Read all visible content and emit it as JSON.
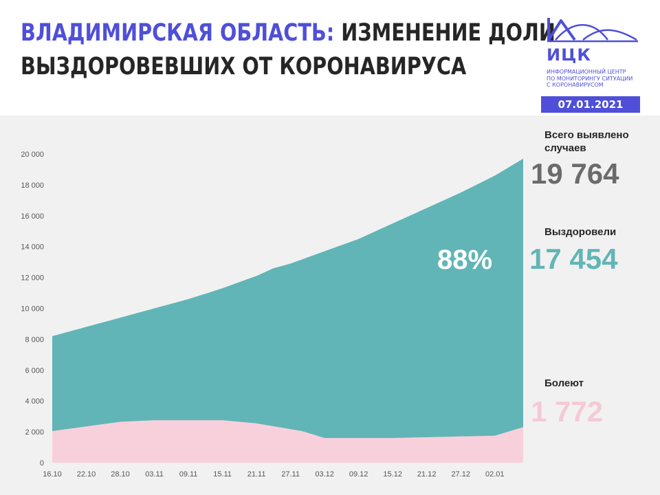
{
  "header": {
    "title_accent": "ВЛАДИМИРСКАЯ ОБЛАСТЬ:",
    "title_rest_line1": "ИЗМЕНЕНИЕ ДОЛИ",
    "title_line2": "ВЫЗДОРОВЕВШИХ ОТ КОРОНАВИРУСА",
    "date": "07.01.2021"
  },
  "logo": {
    "name": "ИЦК",
    "subtitle_lines": [
      "ИНФОРМАЦИОННЫЙ ЦЕНТР",
      "ПО МОНИТОРИНГУ СИТУАЦИИ",
      "С КОРОНАВИРУСОМ"
    ]
  },
  "stats": {
    "total_label_line1": "Всего выявлено",
    "total_label_line2": "случаев",
    "total_value": "19 764",
    "recovered_label": "Выздоровели",
    "recovered_value": "17 454",
    "recovered_share": "88%",
    "sick_label": "Болеют",
    "sick_value": "1 772"
  },
  "colors": {
    "accent": "#4f4fd9",
    "recovered": "#62b5b6",
    "sick": "#f8d0dc",
    "total_value": "#6b6b6b",
    "recovered_value": "#62b5b6",
    "sick_value": "#f5c9d6"
  },
  "chart_data": {
    "type": "area",
    "stacked": true,
    "grid": false,
    "ylim": [
      0,
      20000
    ],
    "yticks": [
      0,
      2000,
      4000,
      6000,
      8000,
      10000,
      12000,
      14000,
      16000,
      18000,
      20000
    ],
    "ytick_labels": [
      "0",
      "2 000",
      "4 000",
      "6 000",
      "8 000",
      "10 000",
      "12 000",
      "14 000",
      "16 000",
      "18 000",
      "20 000"
    ],
    "xtick_labels": [
      "16.10",
      "22.10",
      "28.10",
      "03.11",
      "09.11",
      "15.11",
      "21.11",
      "27.11",
      "03.12",
      "09.12",
      "15.12",
      "21.12",
      "27.12",
      "02.01"
    ],
    "xtick_index": [
      0,
      6,
      12,
      18,
      24,
      30,
      36,
      42,
      48,
      54,
      60,
      66,
      72,
      78
    ],
    "x_count": 84,
    "series": [
      {
        "key": "sick",
        "color": "#f8d0dc",
        "points": [
          [
            0,
            2050
          ],
          [
            6,
            2350
          ],
          [
            12,
            2650
          ],
          [
            18,
            2750
          ],
          [
            24,
            2750
          ],
          [
            30,
            2750
          ],
          [
            36,
            2550
          ],
          [
            40,
            2300
          ],
          [
            44,
            2050
          ],
          [
            48,
            1600
          ],
          [
            54,
            1600
          ],
          [
            60,
            1600
          ],
          [
            66,
            1650
          ],
          [
            72,
            1700
          ],
          [
            78,
            1750
          ],
          [
            83,
            2300
          ]
        ]
      },
      {
        "key": "total",
        "color": "#62b5b6",
        "points": [
          [
            0,
            8200
          ],
          [
            6,
            8800
          ],
          [
            12,
            9400
          ],
          [
            18,
            10000
          ],
          [
            24,
            10600
          ],
          [
            30,
            11300
          ],
          [
            36,
            12100
          ],
          [
            39,
            12600
          ],
          [
            42,
            12900
          ],
          [
            48,
            13700
          ],
          [
            54,
            14500
          ],
          [
            60,
            15500
          ],
          [
            66,
            16500
          ],
          [
            72,
            17500
          ],
          [
            78,
            18600
          ],
          [
            83,
            19700
          ]
        ]
      }
    ]
  }
}
